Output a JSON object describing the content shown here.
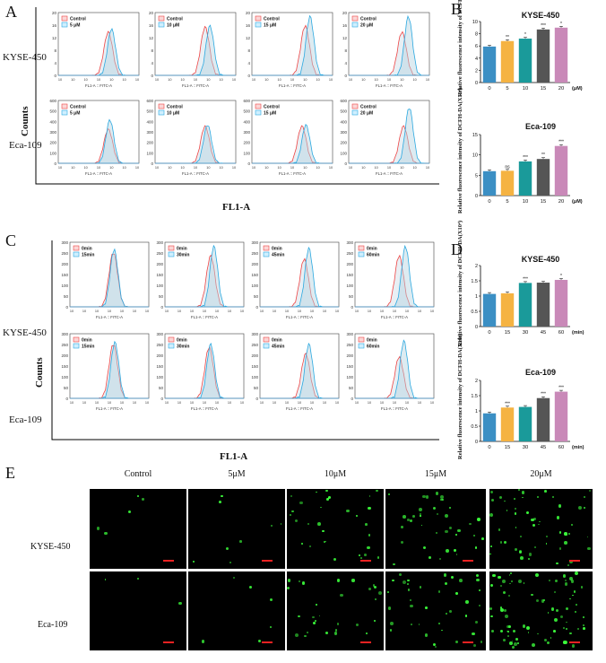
{
  "panels": {
    "A": {
      "letter": "A",
      "rows": [
        "KYSE-450",
        "Eca-109"
      ],
      "control_label": "Control",
      "treat_labels": [
        "5 μM",
        "10 μM",
        "15 μM",
        "20 μM"
      ],
      "y_ticks_row1": [
        "0",
        "2",
        "4",
        "6",
        "8",
        "10",
        "12",
        "14",
        "16",
        "18",
        "20"
      ],
      "y_ticks_row2": [
        "0",
        "100",
        "200",
        "300",
        "400",
        "500",
        "600"
      ],
      "x_axis_label": "FL1-A :: FITC-A",
      "counts_label": "Counts",
      "fl1a_label": "FL1-A"
    },
    "C": {
      "letter": "C",
      "rows": [
        "KYSE-450",
        "Eca-109"
      ],
      "control_label": "0min",
      "treat_labels": [
        "15min",
        "30min",
        "45min",
        "60min"
      ],
      "y_ticks": [
        "0",
        "50",
        "100",
        "150",
        "200",
        "250",
        "300"
      ],
      "x_axis_label": "FL1-A :: FITC-A",
      "counts_label": "Counts",
      "fl1a_label": "FL1-A"
    },
    "B": {
      "letter": "B"
    },
    "D": {
      "letter": "D"
    },
    "E": {
      "letter": "E",
      "columns": [
        "Control",
        "5μM",
        "10μM",
        "15μM",
        "20μM"
      ],
      "rows": [
        "KYSE-450",
        "Eca-109"
      ]
    }
  },
  "chart_data": [
    {
      "type": "bar",
      "title": "KYSE-450",
      "ylabel": "Relative fluorescence intensity of DCFH-DA(X10⁴)",
      "xunit": "(μM)",
      "categories": [
        "0",
        "5",
        "10",
        "15",
        "20"
      ],
      "values": [
        5.9,
        6.8,
        7.2,
        8.7,
        9.0
      ],
      "sig": [
        "",
        "**",
        "*",
        "***",
        "*"
      ],
      "ylim": [
        0,
        10
      ],
      "yticks": [
        0,
        2,
        4,
        6,
        8,
        10
      ],
      "colors": [
        "#3b8fc4",
        "#f5b342",
        "#1a9a9a",
        "#555555",
        "#c989b8"
      ]
    },
    {
      "type": "bar",
      "title": "Eca-109",
      "ylabel": "Relative fluorescence intensity of DCFH-DA(X10⁴)",
      "xunit": "(μM)",
      "categories": [
        "0",
        "5",
        "10",
        "15",
        "20"
      ],
      "values": [
        6.0,
        6.1,
        8.4,
        9.0,
        12.2
      ],
      "sig": [
        "",
        "ns",
        "***",
        "**",
        "***"
      ],
      "ylim": [
        0,
        15
      ],
      "yticks": [
        0,
        5,
        10,
        15
      ],
      "colors": [
        "#3b8fc4",
        "#f5b342",
        "#1a9a9a",
        "#555555",
        "#c989b8"
      ]
    },
    {
      "type": "bar",
      "title": "KYSE-450",
      "ylabel": "Relative fluorescence intensity of DCFH-DA(X10⁴)",
      "xunit": "(min)",
      "categories": [
        "0",
        "15",
        "30",
        "45",
        "60"
      ],
      "values": [
        1.07,
        1.09,
        1.43,
        1.44,
        1.53
      ],
      "sig": [
        "",
        "",
        "***",
        "",
        "*"
      ],
      "ylim": [
        0,
        2.0
      ],
      "yticks": [
        0,
        0.5,
        1.0,
        1.5,
        2.0
      ],
      "colors": [
        "#3b8fc4",
        "#f5b342",
        "#1a9a9a",
        "#555555",
        "#c989b8"
      ]
    },
    {
      "type": "bar",
      "title": "Eca-109",
      "ylabel": "Relative fluorescence intensity of DCFH-DA(X10⁴)",
      "xunit": "(min)",
      "categories": [
        "0",
        "15",
        "30",
        "45",
        "60"
      ],
      "values": [
        0.92,
        1.11,
        1.13,
        1.42,
        1.63
      ],
      "sig": [
        "",
        "***",
        "",
        "***",
        "***"
      ],
      "ylim": [
        0,
        2.0
      ],
      "yticks": [
        0,
        0.5,
        1.0,
        1.5,
        2.0
      ],
      "colors": [
        "#3b8fc4",
        "#f5b342",
        "#1a9a9a",
        "#555555",
        "#c989b8"
      ]
    }
  ]
}
